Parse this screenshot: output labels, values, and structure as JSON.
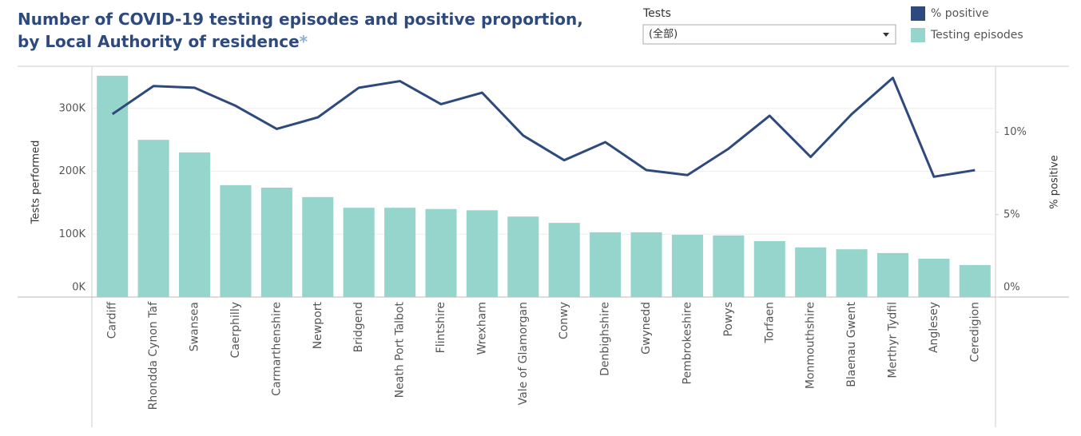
{
  "header": {
    "title_line1": "Number of COVID-19 testing episodes and positive proportion,",
    "title_line2": "by Local Authority of residence",
    "title_mark": "*"
  },
  "filter": {
    "label": "Tests",
    "value": "(全部)"
  },
  "chart_data": {
    "type": "bar-line",
    "categories": [
      "Cardiff",
      "Rhondda Cynon Taf",
      "Swansea",
      "Caerphilly",
      "Carmarthenshire",
      "Newport",
      "Bridgend",
      "Neath Port Talbot",
      "Flintshire",
      "Wrexham",
      "Vale of Glamorgan",
      "Conwy",
      "Denbighshire",
      "Gwynedd",
      "Pembrokeshire",
      "Powys",
      "Torfaen",
      "Monmouthshire",
      "Blaenau Gwent",
      "Merthyr Tydfil",
      "Anglesey",
      "Ceredigion"
    ],
    "series": [
      {
        "name": "Testing episodes",
        "color": "#96d5cb",
        "values": [
          352000,
          250000,
          230000,
          178000,
          174000,
          159000,
          142000,
          142000,
          140000,
          138000,
          128000,
          118000,
          103000,
          103000,
          99000,
          98000,
          89000,
          79000,
          76000,
          70000,
          61000,
          51000
        ]
      },
      {
        "name": "% positive",
        "color": "#2e4a7d",
        "axis": "y2",
        "values": [
          11.1,
          12.8,
          12.7,
          11.6,
          10.2,
          10.9,
          12.7,
          13.1,
          11.7,
          12.4,
          9.8,
          8.3,
          9.4,
          7.7,
          7.4,
          9.0,
          11.0,
          8.5,
          11.1,
          13.3,
          7.3,
          7.7
        ]
      }
    ],
    "ylabel": "Tests performed",
    "y2label": "% positive",
    "ylim": [
      0,
      367000
    ],
    "yticks": [
      {
        "value": 0,
        "label": "0K"
      },
      {
        "value": 100000,
        "label": "100K"
      },
      {
        "value": 200000,
        "label": "200K"
      },
      {
        "value": 300000,
        "label": "300K"
      }
    ],
    "y2lim": [
      0,
      14
    ],
    "y2ticks": [
      {
        "value": 0,
        "label": "0%"
      },
      {
        "value": 5,
        "label": "5%"
      },
      {
        "value": 10,
        "label": "10%"
      }
    ],
    "grid": true
  }
}
